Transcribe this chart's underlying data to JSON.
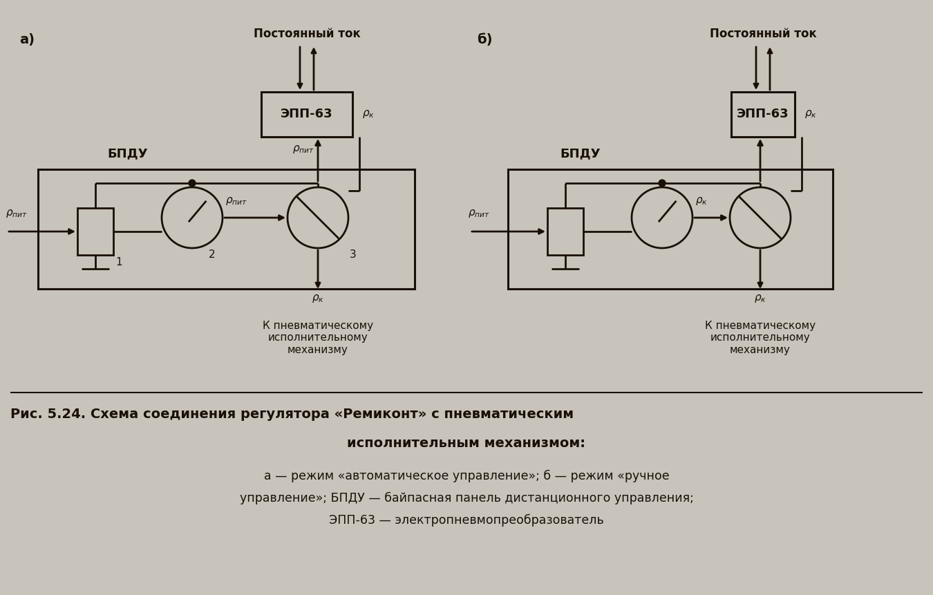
{
  "bg_color": "#c8c4bc",
  "line_color": "#1a1008",
  "text_color": "#1a1008",
  "title_line1": "Рис. 5.24. Схема соединения регулятора «Ремиконт» с пневматическим",
  "title_line2": "исполнительным механизмом:",
  "caption_line1": "а — режим «автоматическое управление»; б — режим «ручное",
  "caption_line2": "управление»; БПДУ — байпасная панель дистанционного управления;",
  "caption_line3": "ЭПП-63 — электропневмопреобразователь",
  "label_a": "а)",
  "label_b": "б)",
  "label_bpdu": "БПДУ",
  "label_epp": "ЭПП-63",
  "label_const_current": "Постоянный ток",
  "label_to_mech": "К пневматическому\nисполнительному\nмеханизму",
  "num1": "1",
  "num2": "2",
  "num3": "3"
}
